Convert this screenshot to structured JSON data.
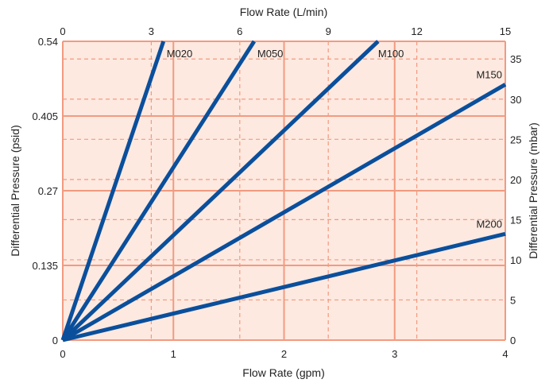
{
  "chart_data": {
    "type": "line",
    "x_bottom": {
      "label": "Flow Rate (gpm)",
      "range": [
        0,
        4
      ],
      "ticks": [
        "0",
        "1",
        "2",
        "3",
        "4"
      ]
    },
    "x_top": {
      "label": "Flow Rate (L/min)",
      "range": [
        0,
        15
      ],
      "ticks": [
        "0",
        "3",
        "6",
        "9",
        "12",
        "15"
      ]
    },
    "y_left": {
      "label": "Differential Pressure (psid)",
      "range": [
        0,
        0.54
      ],
      "ticks": [
        "0",
        "0.135",
        "0.27",
        "0.405",
        "0.54"
      ]
    },
    "y_right": {
      "label": "Differential Pressure (mbar)",
      "range": [
        0,
        37.2
      ],
      "ticks": [
        "0",
        "5",
        "10",
        "15",
        "20",
        "25",
        "30",
        "35"
      ]
    },
    "grid": true,
    "colors": {
      "background": "#fde9e0",
      "grid": "#f29a80",
      "line": "#0a4f9c"
    },
    "series": [
      {
        "name": "M020",
        "x": [
          0,
          0.91
        ],
        "y": [
          0,
          0.54
        ]
      },
      {
        "name": "M050",
        "x": [
          0,
          1.73
        ],
        "y": [
          0,
          0.54
        ]
      },
      {
        "name": "M100",
        "x": [
          0,
          2.85
        ],
        "y": [
          0,
          0.54
        ]
      },
      {
        "name": "M150",
        "x": [
          0,
          4.0
        ],
        "y": [
          0,
          0.462
        ]
      },
      {
        "name": "M200",
        "x": [
          0,
          4.0
        ],
        "y": [
          0,
          0.192
        ]
      }
    ]
  }
}
